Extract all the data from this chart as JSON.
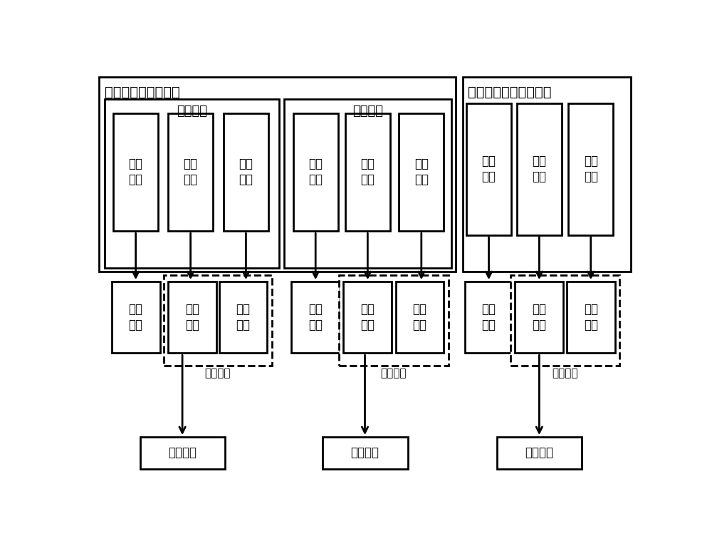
{
  "bg_color": "#ffffff",
  "line_color": "#000000",
  "outer_left_label": "结构化振动数据特征",
  "outer_right_label": "非结构化文本数据特征",
  "trad_label": "传统特征",
  "deep_label": "深度特征",
  "trad_boxes": [
    "特征\n名称",
    "特征\n國值",
    "统计\n计算"
  ],
  "deep_boxes": [
    "深度\n模型",
    "特征\n向量",
    "统计\n计算"
  ],
  "right_boxes": [
    "特征\n实体",
    "特征\n描述",
    "关系\n强度"
  ],
  "attr_label": "特征属性",
  "fault_label": "故障名称",
  "mid_boxes_left": [
    "特征\n名称",
    "数值\n描述",
    "关系\n强度"
  ],
  "mid_boxes_mid": [
    "特征\n名称",
    "数值\n描述",
    "关系\n强度"
  ],
  "mid_boxes_right": [
    "特征\n名称",
    "数值\n描述",
    "关系\n强度"
  ]
}
